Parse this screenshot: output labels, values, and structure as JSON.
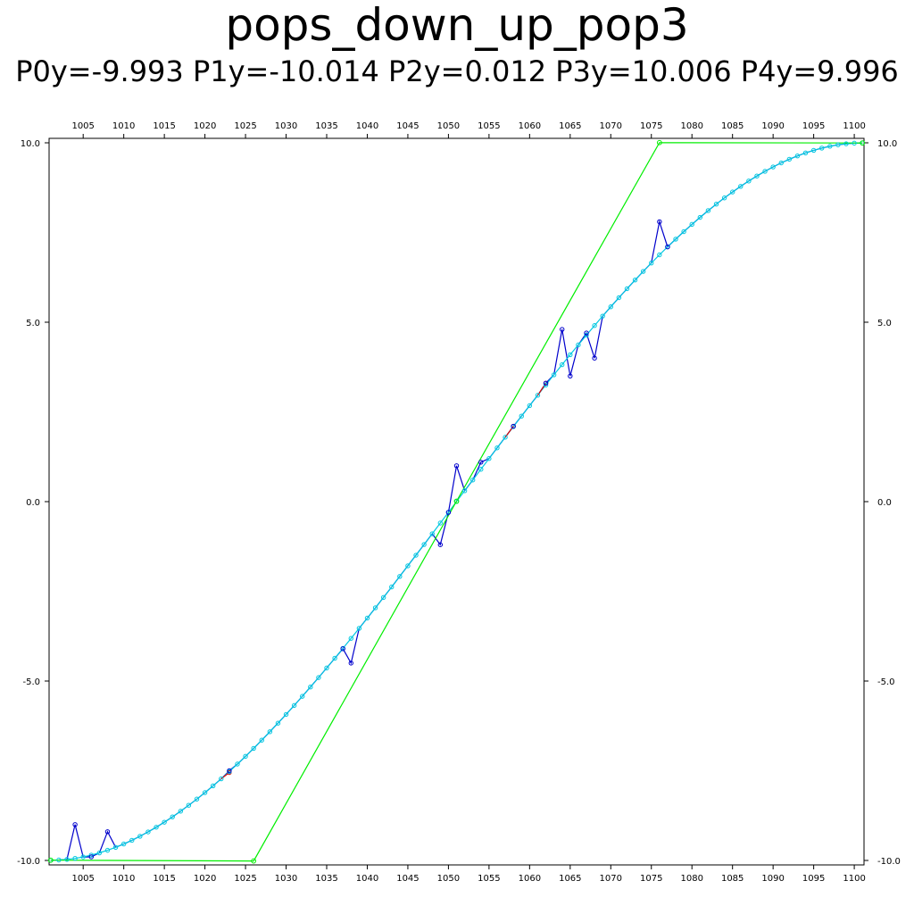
{
  "chart_data": {
    "type": "line",
    "title": "pops_down_up_pop3",
    "subtitle": "P0y=-9.993 P1y=-10.014 P2y=0.012 P3y=10.006 P4y=9.996",
    "xlim": [
      1000.8,
      1101.2
    ],
    "ylim": [
      -10.0,
      10.0
    ],
    "x_ticks": [
      1005,
      1010,
      1015,
      1020,
      1025,
      1030,
      1035,
      1040,
      1045,
      1050,
      1055,
      1060,
      1065,
      1070,
      1075,
      1080,
      1085,
      1090,
      1095,
      1100
    ],
    "y_ticks": [
      -10.0,
      -5.0,
      0.0,
      5.0,
      10.0
    ],
    "y_tick_labels": [
      "-10.0",
      "-5.0",
      "0.0",
      "5.0",
      "10.0"
    ],
    "colors": {
      "control": "#00ee00",
      "noisy": "#0000cc",
      "smooth": "#00c8e0",
      "highlight": "#dd0000",
      "axes": "#000000"
    },
    "series": [
      {
        "key": "control",
        "x": [
          1001,
          1026,
          1051,
          1076,
          1101
        ],
        "y": [
          -9.993,
          -10.014,
          0.012,
          10.006,
          9.996
        ]
      },
      {
        "key": "noisy",
        "x": [
          1004,
          1006,
          1008,
          1023,
          1037,
          1038,
          1049,
          1050,
          1051,
          1054,
          1058,
          1062,
          1064,
          1065,
          1067,
          1068,
          1076,
          1077
        ],
        "y": [
          -9.0,
          -9.9,
          -9.2,
          -7.5,
          -4.1,
          -4.5,
          -1.2,
          -0.3,
          1.0,
          1.1,
          2.1,
          3.3,
          4.8,
          3.5,
          4.7,
          4.0,
          7.8,
          7.1
        ]
      },
      {
        "key": "highlight",
        "x": [
          1023,
          1058,
          1062
        ],
        "y": [
          -7.55,
          2.1,
          3.3
        ]
      }
    ]
  }
}
